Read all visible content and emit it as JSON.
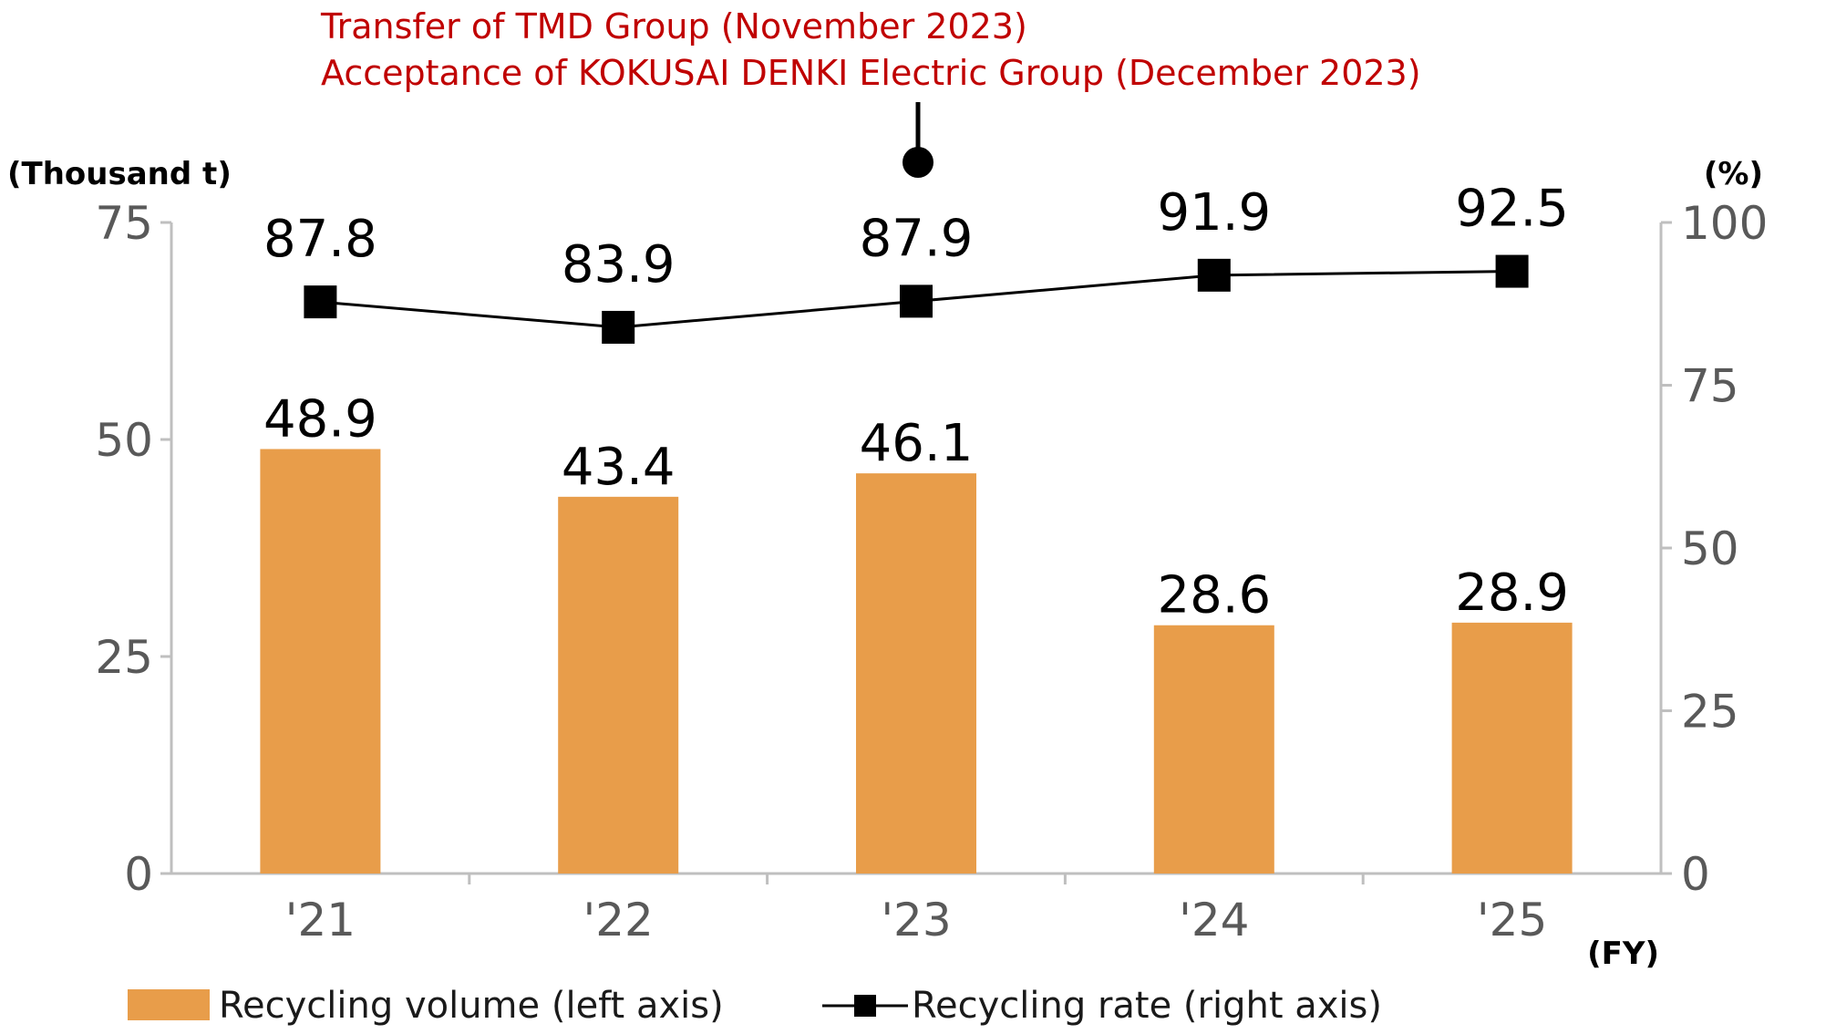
{
  "chart_data": {
    "type": "bar+line",
    "title": "",
    "categories": [
      "'21",
      "'22",
      "'23",
      "'24",
      "'25"
    ],
    "x_unit": "(FY)",
    "left_axis": {
      "unit": "(Thousand t)",
      "ylim": [
        0,
        75
      ],
      "ticks": [
        "0",
        "25",
        "50",
        "75"
      ]
    },
    "right_axis": {
      "unit": "(%)",
      "ylim": [
        0,
        100
      ],
      "ticks": [
        "0",
        "25",
        "50",
        "75",
        "100"
      ]
    },
    "series": [
      {
        "name": "Recycling volume (left axis)",
        "type": "bar",
        "axis": "left",
        "color": "#E89D4A",
        "values": [
          48.9,
          43.4,
          46.1,
          28.6,
          28.9
        ],
        "labels": [
          "48.9",
          "43.4",
          "46.1",
          "28.6",
          "28.9"
        ]
      },
      {
        "name": "Recycling rate (right axis)",
        "type": "line",
        "axis": "right",
        "color": "#000000",
        "values": [
          87.8,
          83.9,
          87.9,
          91.9,
          92.5
        ],
        "labels": [
          "87.8",
          "83.9",
          "87.9",
          "91.9",
          "92.5"
        ]
      }
    ],
    "annotation": {
      "category": "'23",
      "color": "#C00000",
      "lines": [
        "Transfer of TMD Group (November 2023)",
        "Acceptance of KOKUSAI DENKI Electric Group (December 2023)"
      ]
    },
    "grid": false,
    "legend": "bottom-left"
  }
}
